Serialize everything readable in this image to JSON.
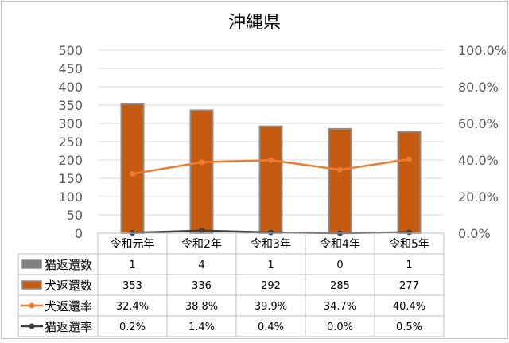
{
  "chart_data": {
    "type": "bar",
    "title": "沖縄県",
    "categories": [
      "令和元年",
      "令和2年",
      "令和3年",
      "令和4年",
      "令和5年"
    ],
    "y_left": {
      "ylim": [
        0,
        500
      ],
      "ticks": [
        "0",
        "50",
        "100",
        "150",
        "200",
        "250",
        "300",
        "350",
        "400",
        "450",
        "500"
      ]
    },
    "y_right": {
      "ylim": [
        0,
        100
      ],
      "ticks": [
        "0.0%",
        "20.0%",
        "40.0%",
        "60.0%",
        "80.0%",
        "100.0%"
      ]
    },
    "grid": true,
    "legend_placement": "data-table-left",
    "series": [
      {
        "name": "猫返還数",
        "kind": "bar",
        "axis": "left",
        "color": "#7f7f7f",
        "values": [
          1,
          4,
          1,
          0,
          1
        ],
        "labels": [
          "1",
          "4",
          "1",
          "0",
          "1"
        ]
      },
      {
        "name": "犬返還数",
        "kind": "bar",
        "axis": "left",
        "color": "#c55a11",
        "values": [
          353,
          336,
          292,
          285,
          277
        ],
        "labels": [
          "353",
          "336",
          "292",
          "285",
          "277"
        ]
      },
      {
        "name": "犬返還率",
        "kind": "line",
        "axis": "right",
        "color": "#ed7d31",
        "values": [
          32.4,
          38.8,
          39.9,
          34.7,
          40.4
        ],
        "labels": [
          "32.4%",
          "38.8%",
          "39.9%",
          "34.7%",
          "40.4%"
        ]
      },
      {
        "name": "猫返還率",
        "kind": "line",
        "axis": "right",
        "color": "#404040",
        "values": [
          0.2,
          1.4,
          0.4,
          0.0,
          0.5
        ],
        "labels": [
          "0.2%",
          "1.4%",
          "0.4%",
          "0.0%",
          "0.5%"
        ]
      }
    ]
  }
}
